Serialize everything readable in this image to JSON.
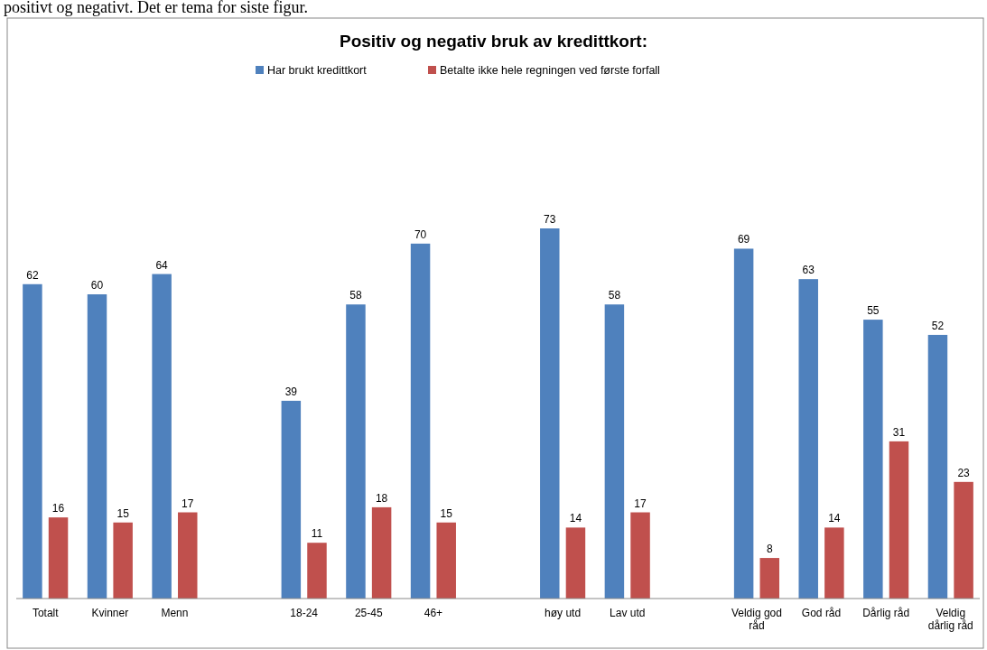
{
  "chart_data": {
    "type": "bar",
    "title": "Positiv og negativ bruk av kredittkort:",
    "annotations": [
      "positivt og negativt. Det er tema for siste figur."
    ],
    "categories": [
      "Totalt",
      "Kvinner",
      "Menn",
      null,
      "18-24",
      "25-45",
      "46+",
      null,
      "høy utd",
      "Lav utd",
      null,
      "Veldig god råd",
      "God råd",
      "Dårlig råd",
      "Veldig dårlig råd"
    ],
    "series": [
      {
        "name": "Har brukt kredittkort",
        "color": "#4f81bd",
        "values": [
          62,
          60,
          64,
          null,
          39,
          58,
          70,
          null,
          73,
          58,
          null,
          69,
          63,
          55,
          52
        ]
      },
      {
        "name": "Betalte ikke hele regningen ved første forfall",
        "color": "#c0504d",
        "values": [
          16,
          15,
          17,
          null,
          11,
          18,
          15,
          null,
          14,
          17,
          null,
          8,
          14,
          31,
          23
        ]
      }
    ],
    "data_labels": true,
    "legend": "top",
    "grid": false
  }
}
